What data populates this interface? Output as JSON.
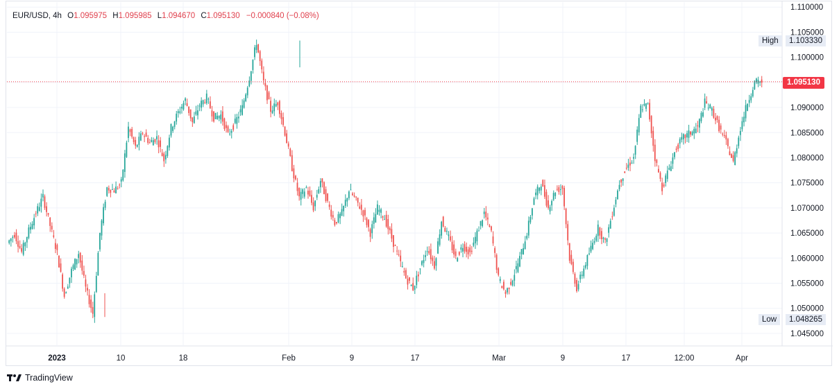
{
  "legend": {
    "symbol": "EUR/USD",
    "interval": "4h",
    "o_label": "O",
    "o_value": "1.095975",
    "h_label": "H",
    "h_value": "1.095985",
    "l_label": "L",
    "l_value": "1.094670",
    "c_label": "C",
    "c_value": "1.095130",
    "change": "−0.000840 (−0.08%)"
  },
  "high_tag": {
    "label": "High",
    "value": "1.103330"
  },
  "low_tag": {
    "label": "Low",
    "value": "1.048265"
  },
  "last_price": "1.095130",
  "footer": {
    "brand": "TradingView"
  },
  "colors": {
    "up": "#26a69a",
    "down": "#ef5350",
    "grid": "#f0f3fa",
    "last_price": "#f23645"
  },
  "chart_data": {
    "type": "candlestick",
    "title": "EUR/USD, 4h",
    "y_ticks": [
      "1.045000",
      "1.050000",
      "1.055000",
      "1.060000",
      "1.065000",
      "1.070000",
      "1.075000",
      "1.080000",
      "1.085000",
      "1.090000",
      "1.095000",
      "1.100000",
      "1.105000",
      "1.110000"
    ],
    "ylim": [
      1.0425,
      1.111
    ],
    "x_ticks": [
      "2023",
      "10",
      "18",
      "Feb",
      "9",
      "17",
      "Mar",
      "9",
      "17",
      "12:00",
      "Apr"
    ],
    "bold_x_ticks": [
      "2023"
    ],
    "high": 1.10333,
    "low": 1.048265,
    "last": 1.09513,
    "series_closes": [
      1.063,
      1.0648,
      1.0612,
      1.0655,
      1.069,
      1.0722,
      1.0665,
      1.061,
      1.0525,
      1.0575,
      1.061,
      1.054,
      1.049,
      1.065,
      1.074,
      1.0735,
      1.075,
      1.086,
      1.082,
      1.085,
      1.083,
      1.084,
      1.0795,
      1.086,
      1.089,
      1.0915,
      1.087,
      1.0905,
      1.092,
      1.088,
      1.0885,
      1.0845,
      1.087,
      1.09,
      1.096,
      1.103,
      1.095,
      1.0895,
      1.091,
      1.085,
      1.078,
      1.072,
      1.074,
      1.07,
      1.0755,
      1.071,
      1.067,
      1.069,
      1.0735,
      1.0715,
      1.069,
      1.065,
      1.07,
      1.068,
      1.064,
      1.06,
      1.056,
      1.054,
      1.058,
      1.062,
      1.0585,
      1.0675,
      1.064,
      1.06,
      1.0625,
      1.061,
      1.065,
      1.069,
      1.065,
      1.056,
      1.053,
      1.056,
      1.06,
      1.065,
      1.072,
      1.075,
      1.07,
      1.0735,
      1.074,
      1.06,
      1.054,
      1.058,
      1.062,
      1.066,
      1.063,
      1.069,
      1.075,
      1.078,
      1.08,
      1.09,
      1.0905,
      1.08,
      1.074,
      1.078,
      1.082,
      1.084,
      1.085,
      1.086,
      1.091,
      1.0895,
      1.086,
      1.083,
      1.079,
      1.086,
      1.091,
      1.095,
      1.0951
    ]
  }
}
